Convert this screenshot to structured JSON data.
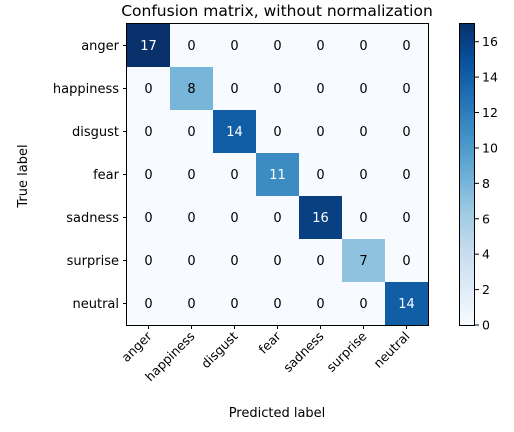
{
  "chart_data": {
    "type": "heatmap",
    "title": "Confusion matrix, without normalization",
    "xlabel": "Predicted label",
    "ylabel": "True label",
    "x_categories": [
      "anger",
      "happiness",
      "disgust",
      "fear",
      "sadness",
      "surprise",
      "neutral"
    ],
    "y_categories": [
      "anger",
      "happiness",
      "disgust",
      "fear",
      "sadness",
      "surprise",
      "neutral"
    ],
    "values": [
      [
        17,
        0,
        0,
        0,
        0,
        0,
        0
      ],
      [
        0,
        8,
        0,
        0,
        0,
        0,
        0
      ],
      [
        0,
        0,
        14,
        0,
        0,
        0,
        0
      ],
      [
        0,
        0,
        0,
        11,
        0,
        0,
        0
      ],
      [
        0,
        0,
        0,
        0,
        16,
        0,
        0
      ],
      [
        0,
        0,
        0,
        0,
        0,
        7,
        0
      ],
      [
        0,
        0,
        0,
        0,
        0,
        0,
        14
      ]
    ],
    "colormap": "Blues",
    "color_range": [
      0,
      17
    ],
    "colorbar_ticks": [
      0,
      2,
      4,
      6,
      8,
      10,
      12,
      14,
      16
    ],
    "grid": false
  }
}
